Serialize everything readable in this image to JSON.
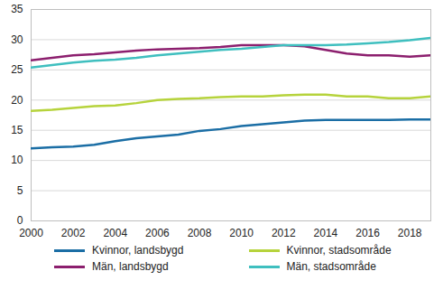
{
  "chart_data": {
    "type": "line",
    "x": [
      2000,
      2001,
      2002,
      2003,
      2004,
      2005,
      2006,
      2007,
      2008,
      2009,
      2010,
      2011,
      2012,
      2013,
      2014,
      2015,
      2016,
      2017,
      2018,
      2019
    ],
    "series": [
      {
        "name": "Kvinnor, landsbygd",
        "color": "#1b6ea5",
        "values": [
          12.0,
          12.2,
          12.3,
          12.6,
          13.2,
          13.7,
          14.0,
          14.3,
          14.9,
          15.2,
          15.7,
          16.0,
          16.3,
          16.6,
          16.7,
          16.7,
          16.7,
          16.7,
          16.8,
          16.8
        ]
      },
      {
        "name": "Kvinnor, stadsområde",
        "color": "#b6d33c",
        "values": [
          18.2,
          18.4,
          18.7,
          19.0,
          19.1,
          19.5,
          20.0,
          20.2,
          20.3,
          20.5,
          20.6,
          20.6,
          20.8,
          20.9,
          20.9,
          20.6,
          20.6,
          20.3,
          20.3,
          20.6
        ]
      },
      {
        "name": "Män, landsbygd",
        "color": "#8c1f6e",
        "values": [
          26.6,
          27.0,
          27.4,
          27.6,
          27.9,
          28.2,
          28.4,
          28.5,
          28.6,
          28.8,
          29.1,
          29.1,
          29.1,
          28.9,
          28.3,
          27.7,
          27.4,
          27.4,
          27.2,
          27.4
        ]
      },
      {
        "name": "Män, stadsområde",
        "color": "#3fbfbf",
        "values": [
          25.4,
          25.8,
          26.2,
          26.5,
          26.7,
          27.0,
          27.4,
          27.7,
          28.0,
          28.3,
          28.5,
          28.8,
          29.1,
          29.1,
          29.1,
          29.2,
          29.4,
          29.6,
          29.9,
          30.3
        ]
      }
    ],
    "xlim": [
      2000,
      2019
    ],
    "xticks": [
      2000,
      2002,
      2004,
      2006,
      2008,
      2010,
      2012,
      2014,
      2016,
      2018
    ],
    "ylim": [
      0,
      35
    ],
    "yticks": [
      0,
      5,
      10,
      15,
      20,
      25,
      30,
      35
    ],
    "grid": true,
    "legend": "bottom"
  }
}
